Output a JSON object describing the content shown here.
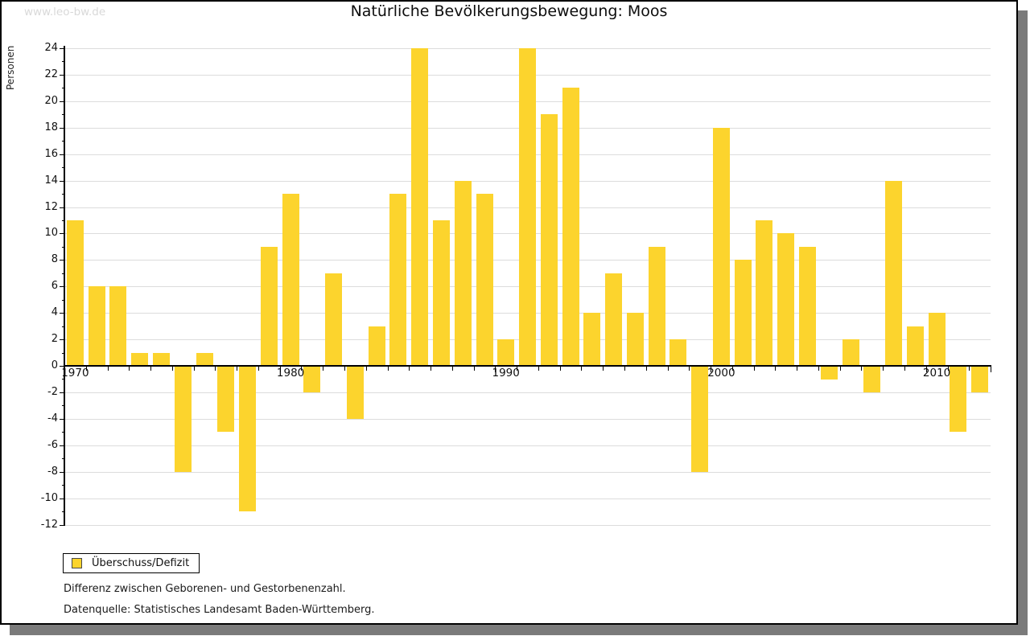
{
  "watermark": "www.leo-bw.de",
  "chart_data": {
    "type": "bar",
    "title": "Natürliche Bevölkerungsbewegung: Moos",
    "ylabel": "Personen",
    "xlabel": "",
    "ylim": [
      -12,
      24
    ],
    "ytick_step": 2,
    "grid": "horizontal",
    "legend_position": "bottom-left",
    "series_name": "Überschuss/Defizit",
    "bar_color": "#fcd42d",
    "x": [
      1970,
      1971,
      1972,
      1973,
      1974,
      1975,
      1976,
      1977,
      1978,
      1979,
      1980,
      1981,
      1982,
      1983,
      1984,
      1985,
      1986,
      1987,
      1988,
      1989,
      1990,
      1991,
      1992,
      1993,
      1994,
      1995,
      1996,
      1997,
      1998,
      1999,
      2000,
      2001,
      2002,
      2003,
      2004,
      2005,
      2006,
      2007,
      2008,
      2009,
      2010,
      2011,
      2012
    ],
    "values": [
      11,
      6,
      6,
      1,
      1,
      -8,
      1,
      -5,
      -11,
      9,
      13,
      -2,
      7,
      -4,
      3,
      13,
      24,
      11,
      14,
      13,
      2,
      24,
      19,
      21,
      4,
      7,
      4,
      9,
      2,
      -8,
      18,
      8,
      11,
      10,
      9,
      -1,
      2,
      -2,
      14,
      3,
      4,
      -5,
      -2
    ],
    "x_tick_labeled_years": [
      1970,
      1980,
      1990,
      2000,
      2010
    ]
  },
  "legend": {
    "label": "Überschuss/Defizit"
  },
  "captions": {
    "definition": "Differenz zwischen Geborenen- und Gestorbenenzahl.",
    "source": "Datenquelle: Statistisches Landesamt Baden-Württemberg."
  }
}
